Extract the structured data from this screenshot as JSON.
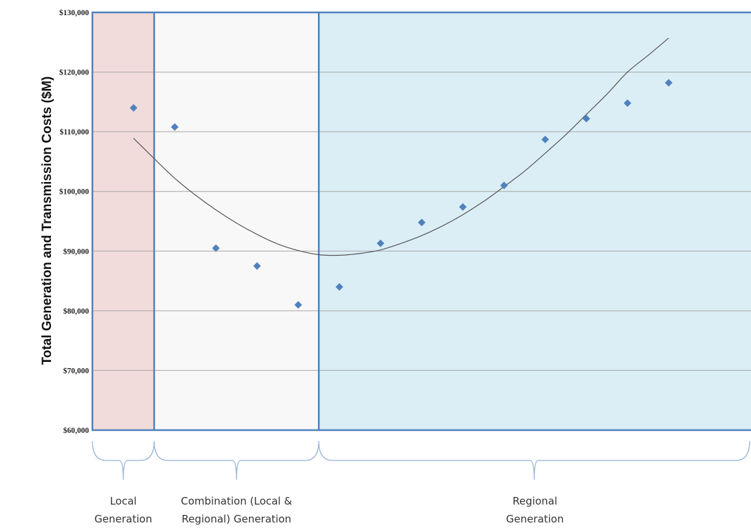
{
  "chart_data": {
    "type": "scatter",
    "ylabel": "Total Generation and Transmission Costs ($M)",
    "y_tick_labels": [
      "$60,000",
      "$70,000",
      "$80,000",
      "$90,000",
      "$100,000",
      "$110,000",
      "$120,000",
      "$130,000"
    ],
    "y_ticks": [
      60000,
      70000,
      80000,
      90000,
      100000,
      110000,
      120000,
      130000
    ],
    "ylim": [
      60000,
      130000
    ],
    "xlim": [
      0,
      16
    ],
    "grid": true,
    "series": [
      {
        "x": [
          1,
          2,
          3,
          4,
          5,
          6,
          7,
          8,
          9,
          10,
          11,
          12,
          13,
          14
        ],
        "values": [
          114000,
          110800,
          90500,
          87500,
          81000,
          84000,
          91300,
          94800,
          97400,
          101000,
          108700,
          112200,
          114800,
          118200
        ]
      }
    ],
    "trendline": {
      "type": "polynomial",
      "x": [
        1,
        1.5,
        2,
        2.5,
        3,
        3.5,
        4,
        4.5,
        5,
        5.5,
        6,
        6.5,
        7,
        7.5,
        8,
        8.5,
        9,
        9.5,
        10,
        10.5,
        11,
        11.5,
        12,
        12.5,
        13,
        13.5,
        14
      ],
      "y": [
        108900,
        105500,
        102200,
        99400,
        96900,
        94700,
        92800,
        91200,
        90100,
        89400,
        89300,
        89600,
        90200,
        91300,
        92600,
        94200,
        96100,
        98300,
        100800,
        103400,
        106400,
        109500,
        112900,
        116300,
        120000,
        122800,
        125700
      ]
    },
    "regions": [
      {
        "label_line1": "Local",
        "label_line2": "Generation",
        "x_start": 0,
        "x_end": 1.5,
        "color": "#f2dcdb"
      },
      {
        "label_line1": "Combination (Local &",
        "label_line2": "Regional) Generation",
        "x_start": 1.5,
        "x_end": 5.5,
        "color": "#f8f8f8"
      },
      {
        "label_line1": "Regional",
        "label_line2": "Generation",
        "x_start": 5.5,
        "x_end": 16,
        "color": "#dbeef6"
      }
    ],
    "colors": {
      "marker": "#4f81bd",
      "trendline": "#555555",
      "border": "#4f81bd",
      "grid": "#a6a6a6",
      "brace": "#95b3d7"
    }
  }
}
